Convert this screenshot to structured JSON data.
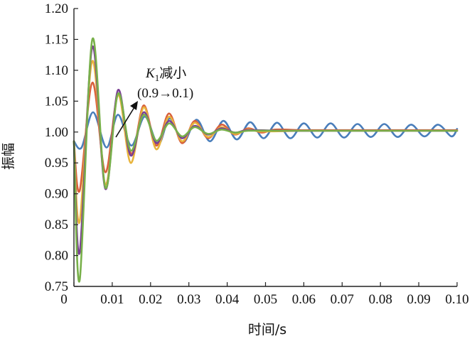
{
  "chart_data": {
    "type": "line",
    "title": "",
    "xlabel": "时间/s",
    "ylabel": "振幅",
    "xlim": [
      0,
      0.1
    ],
    "ylim": [
      0.75,
      1.2
    ],
    "x_ticks": [
      "0",
      "0.01",
      "0.02",
      "0.03",
      "0.04",
      "0.05",
      "0.06",
      "0.07",
      "0.08",
      "0.09",
      "0.10"
    ],
    "y_ticks": [
      "0.75",
      "0.80",
      "0.85",
      "0.90",
      "0.95",
      "1.00",
      "1.05",
      "1.10",
      "1.15",
      "1.20"
    ],
    "grid": false,
    "legend": "none",
    "annotation": {
      "line1_italic": "K",
      "line1_sub": "1",
      "line1_rest": "减小",
      "line2": "(0.9→0.1)"
    },
    "series": [
      {
        "color": "#4a7ebb",
        "points": [
          [
            0.0,
            0.985
          ],
          [
            0.002,
            0.975
          ],
          [
            0.005,
            1.032
          ],
          [
            0.0085,
            0.975
          ],
          [
            0.0115,
            1.028
          ],
          [
            0.015,
            0.978
          ],
          [
            0.0185,
            1.025
          ],
          [
            0.022,
            0.98
          ],
          [
            0.025,
            1.022
          ],
          [
            0.0285,
            0.983
          ],
          [
            0.032,
            1.02
          ],
          [
            0.0355,
            0.985
          ],
          [
            0.039,
            1.018
          ],
          [
            0.0425,
            0.988
          ],
          [
            0.046,
            1.016
          ],
          [
            0.0495,
            0.99
          ],
          [
            0.053,
            1.015
          ],
          [
            0.0565,
            0.99
          ],
          [
            0.06,
            1.014
          ],
          [
            0.0635,
            0.991
          ],
          [
            0.067,
            1.014
          ],
          [
            0.0705,
            0.991
          ],
          [
            0.074,
            1.013
          ],
          [
            0.0775,
            0.992
          ],
          [
            0.081,
            1.013
          ],
          [
            0.0845,
            0.992
          ],
          [
            0.088,
            1.012
          ],
          [
            0.0915,
            0.993
          ],
          [
            0.095,
            1.012
          ],
          [
            0.0985,
            0.993
          ],
          [
            0.1,
            1.005
          ]
        ]
      },
      {
        "color": "#d9603c",
        "points": [
          [
            0.0,
            0.985
          ],
          [
            0.0015,
            0.905
          ],
          [
            0.0048,
            1.08
          ],
          [
            0.0082,
            0.935
          ],
          [
            0.0115,
            1.06
          ],
          [
            0.015,
            0.965
          ],
          [
            0.0182,
            1.043
          ],
          [
            0.0215,
            0.978
          ],
          [
            0.0248,
            1.03
          ],
          [
            0.0282,
            0.982
          ],
          [
            0.0315,
            1.018
          ],
          [
            0.035,
            0.99
          ],
          [
            0.0385,
            1.012
          ],
          [
            0.042,
            0.996
          ],
          [
            0.0455,
            1.006
          ],
          [
            0.049,
            0.999
          ],
          [
            0.0525,
            1.004
          ],
          [
            0.06,
            1.003
          ],
          [
            0.07,
            1.003
          ],
          [
            0.08,
            1.003
          ],
          [
            0.09,
            1.003
          ],
          [
            0.1,
            1.003
          ]
        ]
      },
      {
        "color": "#e8b43c",
        "points": [
          [
            0.0,
            0.985
          ],
          [
            0.0015,
            0.855
          ],
          [
            0.0048,
            1.115
          ],
          [
            0.0082,
            0.915
          ],
          [
            0.0115,
            1.06
          ],
          [
            0.0148,
            0.95
          ],
          [
            0.0182,
            1.04
          ],
          [
            0.0215,
            0.972
          ],
          [
            0.0248,
            1.025
          ],
          [
            0.0282,
            0.985
          ],
          [
            0.0315,
            1.015
          ],
          [
            0.035,
            0.992
          ],
          [
            0.0385,
            1.008
          ],
          [
            0.042,
            0.997
          ],
          [
            0.0455,
            1.004
          ],
          [
            0.049,
            1.001
          ],
          [
            0.06,
            1.002
          ],
          [
            0.07,
            1.002
          ],
          [
            0.08,
            1.002
          ],
          [
            0.09,
            1.002
          ],
          [
            0.1,
            1.002
          ]
        ]
      },
      {
        "color": "#7a3f93",
        "points": [
          [
            0.0,
            0.985
          ],
          [
            0.0015,
            0.805
          ],
          [
            0.0048,
            1.138
          ],
          [
            0.0082,
            0.908
          ],
          [
            0.0115,
            1.068
          ],
          [
            0.0148,
            0.962
          ],
          [
            0.0182,
            1.032
          ],
          [
            0.0215,
            0.982
          ],
          [
            0.0248,
            1.018
          ],
          [
            0.0282,
            0.99
          ],
          [
            0.0315,
            1.01
          ],
          [
            0.035,
            0.996
          ],
          [
            0.0385,
            1.006
          ],
          [
            0.042,
            0.999
          ],
          [
            0.0455,
            1.003
          ],
          [
            0.055,
            1.002
          ],
          [
            0.065,
            1.002
          ],
          [
            0.075,
            1.002
          ],
          [
            0.085,
            1.002
          ],
          [
            0.1,
            1.002
          ]
        ]
      },
      {
        "color": "#78b04a",
        "points": [
          [
            0.0,
            0.985
          ],
          [
            0.0015,
            0.76
          ],
          [
            0.0048,
            1.15
          ],
          [
            0.0082,
            0.91
          ],
          [
            0.0115,
            1.062
          ],
          [
            0.0148,
            0.97
          ],
          [
            0.0182,
            1.028
          ],
          [
            0.0215,
            0.986
          ],
          [
            0.0248,
            1.014
          ],
          [
            0.0282,
            0.993
          ],
          [
            0.0315,
            1.008
          ],
          [
            0.035,
            0.997
          ],
          [
            0.0385,
            1.004
          ],
          [
            0.042,
            0.999
          ],
          [
            0.0455,
            1.002
          ],
          [
            0.055,
            1.002
          ],
          [
            0.065,
            1.002
          ],
          [
            0.075,
            1.002
          ],
          [
            0.085,
            1.002
          ],
          [
            0.1,
            1.002
          ]
        ]
      }
    ]
  }
}
